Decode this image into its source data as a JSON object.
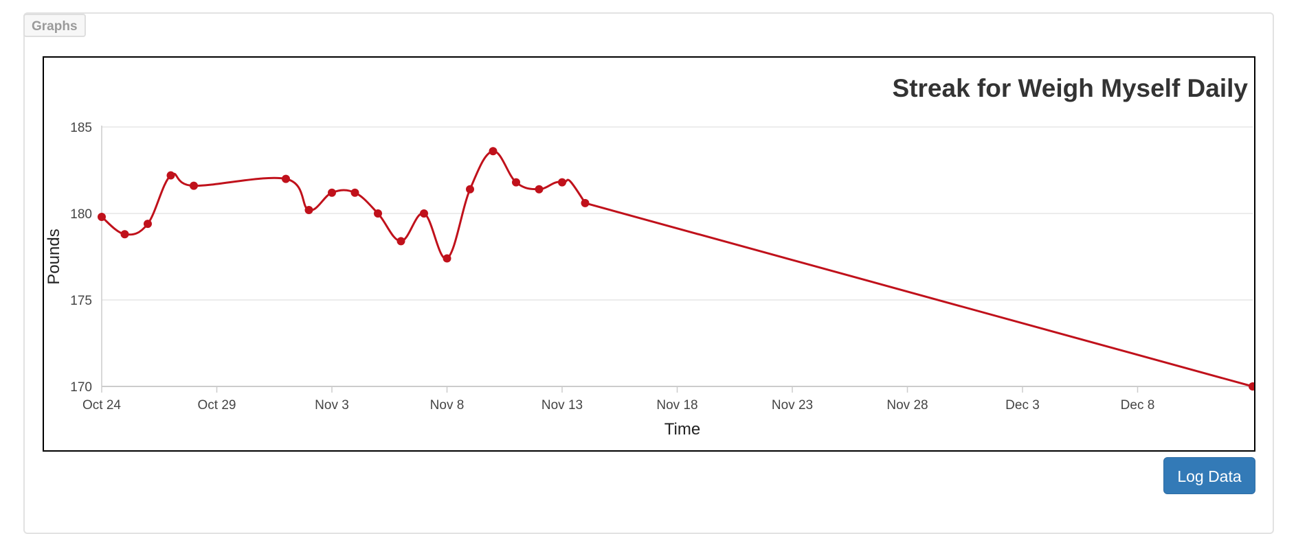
{
  "panel": {
    "tab_label": "Graphs"
  },
  "actions": {
    "log_label": "Log Data"
  },
  "colors": {
    "line": "#c0111b",
    "button": "#337ab7",
    "grid": "#e6e6e6"
  },
  "chart_data": {
    "type": "line",
    "title": "Streak for Weigh Myself Daily",
    "xlabel": "Time",
    "ylabel": "Pounds",
    "ylim": [
      170,
      185
    ],
    "yticks": [
      170,
      175,
      180,
      185
    ],
    "xlim": [
      "2024-10-24",
      "2024-12-13"
    ],
    "xticks": [
      {
        "date": "2024-10-24",
        "label": "Oct 24"
      },
      {
        "date": "2024-10-29",
        "label": "Oct 29"
      },
      {
        "date": "2024-11-03",
        "label": "Nov 3"
      },
      {
        "date": "2024-11-08",
        "label": "Nov 8"
      },
      {
        "date": "2024-11-13",
        "label": "Nov 13"
      },
      {
        "date": "2024-11-18",
        "label": "Nov 18"
      },
      {
        "date": "2024-11-23",
        "label": "Nov 23"
      },
      {
        "date": "2024-11-28",
        "label": "Nov 28"
      },
      {
        "date": "2024-12-03",
        "label": "Dec 3"
      },
      {
        "date": "2024-12-08",
        "label": "Dec 8"
      }
    ],
    "grid": true,
    "legend": "none",
    "series": [
      {
        "points": [
          {
            "x": "2024-10-24",
            "y": 179.8
          },
          {
            "x": "2024-10-25",
            "y": 178.8
          },
          {
            "x": "2024-10-26",
            "y": 179.4
          },
          {
            "x": "2024-10-27",
            "y": 182.2
          },
          {
            "x": "2024-10-28",
            "y": 181.6
          },
          {
            "x": "2024-11-01",
            "y": 182.0
          },
          {
            "x": "2024-11-02",
            "y": 180.2
          },
          {
            "x": "2024-11-03",
            "y": 181.2
          },
          {
            "x": "2024-11-04",
            "y": 181.2
          },
          {
            "x": "2024-11-05",
            "y": 180.0
          },
          {
            "x": "2024-11-06",
            "y": 178.4
          },
          {
            "x": "2024-11-07",
            "y": 180.0
          },
          {
            "x": "2024-11-08",
            "y": 177.4
          },
          {
            "x": "2024-11-09",
            "y": 181.4
          },
          {
            "x": "2024-11-10",
            "y": 183.6
          },
          {
            "x": "2024-11-11",
            "y": 181.8
          },
          {
            "x": "2024-11-12",
            "y": 181.4
          },
          {
            "x": "2024-11-13",
            "y": 181.8
          },
          {
            "x": "2024-11-14",
            "y": 180.6
          },
          {
            "x": "2024-12-13",
            "y": 170.0
          }
        ]
      }
    ]
  }
}
